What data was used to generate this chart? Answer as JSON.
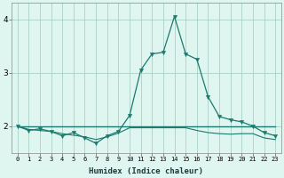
{
  "x": [
    0,
    1,
    2,
    3,
    4,
    5,
    6,
    7,
    8,
    9,
    10,
    11,
    12,
    13,
    14,
    15,
    16,
    17,
    18,
    19,
    20,
    21,
    22,
    23
  ],
  "y_main": [
    2.0,
    1.92,
    1.95,
    1.9,
    1.82,
    1.88,
    1.78,
    1.68,
    1.82,
    1.9,
    2.2,
    3.05,
    3.35,
    3.38,
    4.05,
    3.35,
    3.25,
    2.55,
    2.18,
    2.12,
    2.08,
    2.0,
    1.88,
    1.82
  ],
  "y_flat": [
    2.0,
    2.0,
    2.0,
    2.0,
    2.0,
    2.0,
    2.0,
    2.0,
    2.0,
    2.0,
    2.0,
    2.0,
    2.0,
    2.0,
    2.0,
    2.0,
    2.0,
    2.0,
    2.0,
    2.0,
    2.0,
    2.0,
    2.0,
    2.0
  ],
  "y_low": [
    2.0,
    1.94,
    1.92,
    1.9,
    1.86,
    1.83,
    1.8,
    1.75,
    1.8,
    1.87,
    1.97,
    1.97,
    1.97,
    1.97,
    1.97,
    1.97,
    1.92,
    1.88,
    1.86,
    1.85,
    1.86,
    1.86,
    1.78,
    1.75
  ],
  "line_color": "#1a7a6e",
  "bg_color": "#dff5f0",
  "grid_color": "#aacfc8",
  "xlabel": "Humidex (Indice chaleur)",
  "ylim": [
    1.5,
    4.3
  ],
  "xlim": [
    -0.5,
    23.5
  ],
  "yticks": [
    2,
    3,
    4
  ],
  "xticks": [
    0,
    1,
    2,
    3,
    4,
    5,
    6,
    7,
    8,
    9,
    10,
    11,
    12,
    13,
    14,
    15,
    16,
    17,
    18,
    19,
    20,
    21,
    22,
    23
  ]
}
